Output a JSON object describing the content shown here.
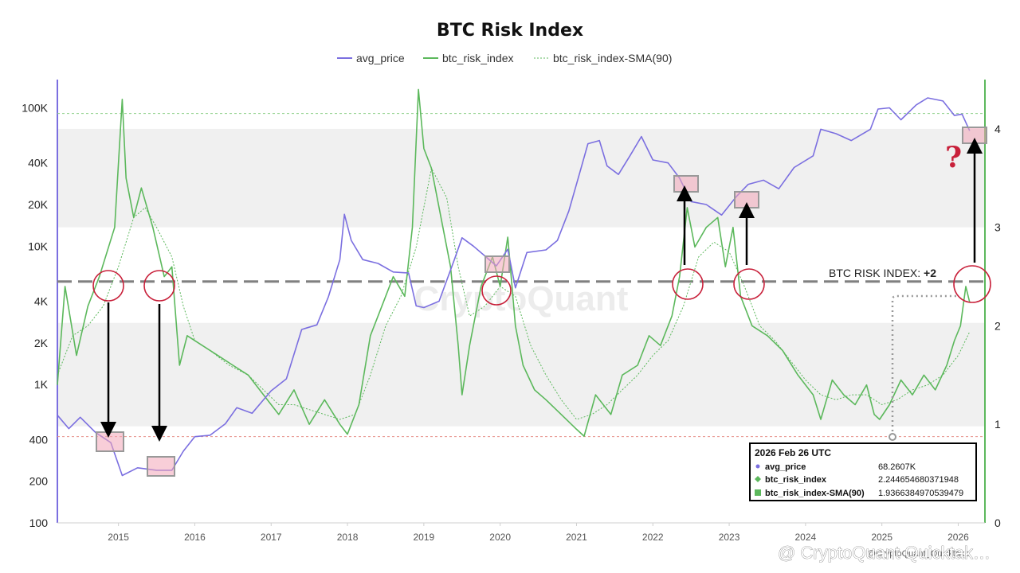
{
  "chart_data": {
    "type": "line",
    "title": "BTC Risk Index",
    "legend": {
      "placement": "top-center",
      "entries": [
        "avg_price",
        "btc_risk_index",
        "btc_risk_index-SMA(90)"
      ]
    },
    "x_range": [
      2014.2,
      2026.35
    ],
    "x_ticks": [
      "2015",
      "2016",
      "2017",
      "2018",
      "2019",
      "2020",
      "2021",
      "2022",
      "2023",
      "2024",
      "2025",
      "2026"
    ],
    "y_left": {
      "scale": "log",
      "range": [
        100,
        160000
      ],
      "ticks": [
        "100",
        "200",
        "400",
        "1K",
        "2K",
        "4K",
        "10K",
        "20K",
        "40K",
        "100K"
      ]
    },
    "y_right": {
      "scale": "linear",
      "range": [
        0,
        4.5
      ],
      "ticks": [
        "0",
        "1",
        "2",
        "3",
        "4"
      ]
    },
    "grid": false,
    "bands_right_axis": [
      [
        0.98,
        2.03
      ],
      [
        3.0,
        4.0
      ]
    ],
    "ref_lines": [
      {
        "axis": "right",
        "value": 2.45,
        "style": "dashed",
        "color": "#808080"
      },
      {
        "axis": "left",
        "value": 420,
        "style": "dotted",
        "color": "#e8918a"
      },
      {
        "axis": "left",
        "value": 91000,
        "style": "dotted",
        "color": "#8fd18a"
      }
    ],
    "series": [
      {
        "name": "avg_price",
        "axis": "left",
        "color": "#7b6fe0",
        "points": [
          [
            2014.2,
            600
          ],
          [
            2014.35,
            480
          ],
          [
            2014.5,
            580
          ],
          [
            2014.7,
            450
          ],
          [
            2014.9,
            380
          ],
          [
            2015.05,
            220
          ],
          [
            2015.25,
            250
          ],
          [
            2015.5,
            240
          ],
          [
            2015.7,
            240
          ],
          [
            2015.85,
            330
          ],
          [
            2016.0,
            420
          ],
          [
            2016.2,
            430
          ],
          [
            2016.4,
            520
          ],
          [
            2016.55,
            680
          ],
          [
            2016.75,
            620
          ],
          [
            2017.0,
            900
          ],
          [
            2017.2,
            1100
          ],
          [
            2017.4,
            2500
          ],
          [
            2017.6,
            2700
          ],
          [
            2017.75,
            4300
          ],
          [
            2017.9,
            8000
          ],
          [
            2017.96,
            17000
          ],
          [
            2018.05,
            11000
          ],
          [
            2018.2,
            8000
          ],
          [
            2018.4,
            7500
          ],
          [
            2018.6,
            6500
          ],
          [
            2018.8,
            6400
          ],
          [
            2018.9,
            3700
          ],
          [
            2019.0,
            3600
          ],
          [
            2019.2,
            4000
          ],
          [
            2019.4,
            8000
          ],
          [
            2019.5,
            11500
          ],
          [
            2019.65,
            10000
          ],
          [
            2019.8,
            8500
          ],
          [
            2019.95,
            7200
          ],
          [
            2020.1,
            9500
          ],
          [
            2020.2,
            5000
          ],
          [
            2020.35,
            9000
          ],
          [
            2020.6,
            9400
          ],
          [
            2020.75,
            11000
          ],
          [
            2020.9,
            18000
          ],
          [
            2021.05,
            35000
          ],
          [
            2021.15,
            55000
          ],
          [
            2021.3,
            58000
          ],
          [
            2021.4,
            38000
          ],
          [
            2021.55,
            33000
          ],
          [
            2021.7,
            45000
          ],
          [
            2021.85,
            62000
          ],
          [
            2022.0,
            42000
          ],
          [
            2022.2,
            40000
          ],
          [
            2022.35,
            31000
          ],
          [
            2022.5,
            21000
          ],
          [
            2022.7,
            20000
          ],
          [
            2022.9,
            16800
          ],
          [
            2023.1,
            23000
          ],
          [
            2023.25,
            28000
          ],
          [
            2023.45,
            30000
          ],
          [
            2023.65,
            26000
          ],
          [
            2023.85,
            37000
          ],
          [
            2024.1,
            45000
          ],
          [
            2024.2,
            70000
          ],
          [
            2024.4,
            65000
          ],
          [
            2024.6,
            58000
          ],
          [
            2024.85,
            70000
          ],
          [
            2024.95,
            98000
          ],
          [
            2025.1,
            100000
          ],
          [
            2025.25,
            82000
          ],
          [
            2025.45,
            105000
          ],
          [
            2025.6,
            118000
          ],
          [
            2025.8,
            112000
          ],
          [
            2025.95,
            88000
          ],
          [
            2026.05,
            90000
          ],
          [
            2026.15,
            68260
          ]
        ]
      },
      {
        "name": "btc_risk_index",
        "axis": "right",
        "color": "#5cb85c",
        "points": [
          [
            2014.2,
            1.4
          ],
          [
            2014.3,
            2.4
          ],
          [
            2014.45,
            1.7
          ],
          [
            2014.6,
            2.2
          ],
          [
            2014.75,
            2.5
          ],
          [
            2014.95,
            3.0
          ],
          [
            2015.05,
            4.3
          ],
          [
            2015.1,
            3.5
          ],
          [
            2015.2,
            3.1
          ],
          [
            2015.3,
            3.4
          ],
          [
            2015.45,
            3.0
          ],
          [
            2015.6,
            2.5
          ],
          [
            2015.7,
            2.6
          ],
          [
            2015.8,
            1.6
          ],
          [
            2015.9,
            1.9
          ],
          [
            2016.1,
            1.8
          ],
          [
            2016.3,
            1.7
          ],
          [
            2016.5,
            1.6
          ],
          [
            2016.7,
            1.5
          ],
          [
            2016.9,
            1.3
          ],
          [
            2017.1,
            1.1
          ],
          [
            2017.3,
            1.35
          ],
          [
            2017.5,
            1.0
          ],
          [
            2017.7,
            1.25
          ],
          [
            2017.9,
            1.0
          ],
          [
            2018.0,
            0.9
          ],
          [
            2018.15,
            1.2
          ],
          [
            2018.3,
            1.9
          ],
          [
            2018.45,
            2.2
          ],
          [
            2018.6,
            2.5
          ],
          [
            2018.75,
            2.3
          ],
          [
            2018.85,
            3.0
          ],
          [
            2018.93,
            4.4
          ],
          [
            2019.0,
            3.8
          ],
          [
            2019.1,
            3.6
          ],
          [
            2019.25,
            3.0
          ],
          [
            2019.35,
            2.6
          ],
          [
            2019.45,
            1.8
          ],
          [
            2019.5,
            1.3
          ],
          [
            2019.6,
            1.8
          ],
          [
            2019.75,
            2.4
          ],
          [
            2019.9,
            2.7
          ],
          [
            2020.0,
            2.4
          ],
          [
            2020.1,
            2.9
          ],
          [
            2020.2,
            2.0
          ],
          [
            2020.3,
            1.6
          ],
          [
            2020.45,
            1.35
          ],
          [
            2020.6,
            1.25
          ],
          [
            2020.8,
            1.1
          ],
          [
            2021.0,
            0.95
          ],
          [
            2021.1,
            0.88
          ],
          [
            2021.25,
            1.3
          ],
          [
            2021.45,
            1.1
          ],
          [
            2021.6,
            1.5
          ],
          [
            2021.8,
            1.6
          ],
          [
            2021.95,
            1.9
          ],
          [
            2022.1,
            1.8
          ],
          [
            2022.25,
            2.1
          ],
          [
            2022.35,
            2.5
          ],
          [
            2022.45,
            3.2
          ],
          [
            2022.55,
            2.8
          ],
          [
            2022.7,
            3.0
          ],
          [
            2022.85,
            3.1
          ],
          [
            2022.95,
            2.6
          ],
          [
            2023.05,
            3.0
          ],
          [
            2023.15,
            2.3
          ],
          [
            2023.3,
            2.0
          ],
          [
            2023.5,
            1.9
          ],
          [
            2023.7,
            1.75
          ],
          [
            2023.9,
            1.5
          ],
          [
            2024.1,
            1.3
          ],
          [
            2024.2,
            1.05
          ],
          [
            2024.35,
            1.45
          ],
          [
            2024.5,
            1.3
          ],
          [
            2024.65,
            1.2
          ],
          [
            2024.8,
            1.4
          ],
          [
            2024.9,
            1.1
          ],
          [
            2024.97,
            1.05
          ],
          [
            2025.1,
            1.2
          ],
          [
            2025.25,
            1.45
          ],
          [
            2025.4,
            1.3
          ],
          [
            2025.55,
            1.5
          ],
          [
            2025.7,
            1.35
          ],
          [
            2025.85,
            1.6
          ],
          [
            2025.95,
            1.85
          ],
          [
            2026.03,
            2.0
          ],
          [
            2026.1,
            2.4
          ],
          [
            2026.15,
            2.24
          ]
        ]
      },
      {
        "name": "btc_risk_index-SMA(90)",
        "axis": "right",
        "color": "#5cb85c",
        "points": [
          [
            2014.2,
            1.5
          ],
          [
            2014.4,
            1.9
          ],
          [
            2014.6,
            2.0
          ],
          [
            2014.8,
            2.2
          ],
          [
            2015.0,
            2.6
          ],
          [
            2015.2,
            3.1
          ],
          [
            2015.35,
            3.2
          ],
          [
            2015.5,
            3.0
          ],
          [
            2015.7,
            2.7
          ],
          [
            2015.85,
            2.2
          ],
          [
            2016.0,
            1.85
          ],
          [
            2016.2,
            1.75
          ],
          [
            2016.45,
            1.6
          ],
          [
            2016.7,
            1.5
          ],
          [
            2016.9,
            1.35
          ],
          [
            2017.1,
            1.2
          ],
          [
            2017.3,
            1.2
          ],
          [
            2017.5,
            1.15
          ],
          [
            2017.7,
            1.1
          ],
          [
            2017.9,
            1.05
          ],
          [
            2018.1,
            1.1
          ],
          [
            2018.3,
            1.5
          ],
          [
            2018.5,
            2.0
          ],
          [
            2018.7,
            2.3
          ],
          [
            2018.9,
            2.8
          ],
          [
            2019.1,
            3.6
          ],
          [
            2019.3,
            3.3
          ],
          [
            2019.45,
            2.6
          ],
          [
            2019.6,
            2.1
          ],
          [
            2019.8,
            2.2
          ],
          [
            2020.0,
            2.4
          ],
          [
            2020.2,
            2.3
          ],
          [
            2020.4,
            1.8
          ],
          [
            2020.6,
            1.5
          ],
          [
            2020.8,
            1.25
          ],
          [
            2021.0,
            1.05
          ],
          [
            2021.2,
            1.1
          ],
          [
            2021.4,
            1.2
          ],
          [
            2021.6,
            1.35
          ],
          [
            2021.8,
            1.5
          ],
          [
            2022.0,
            1.7
          ],
          [
            2022.2,
            1.85
          ],
          [
            2022.4,
            2.2
          ],
          [
            2022.6,
            2.7
          ],
          [
            2022.8,
            2.85
          ],
          [
            2023.0,
            2.75
          ],
          [
            2023.2,
            2.4
          ],
          [
            2023.4,
            2.0
          ],
          [
            2023.6,
            1.85
          ],
          [
            2023.8,
            1.65
          ],
          [
            2024.0,
            1.45
          ],
          [
            2024.2,
            1.3
          ],
          [
            2024.4,
            1.25
          ],
          [
            2024.6,
            1.3
          ],
          [
            2024.8,
            1.3
          ],
          [
            2025.0,
            1.2
          ],
          [
            2025.2,
            1.25
          ],
          [
            2025.4,
            1.35
          ],
          [
            2025.6,
            1.4
          ],
          [
            2025.8,
            1.5
          ],
          [
            2026.0,
            1.7
          ],
          [
            2026.15,
            1.94
          ]
        ]
      }
    ],
    "annotations": {
      "risk_label_prefix": "BTC RISK INDEX: ",
      "risk_label_value": "+2",
      "question_mark": "?",
      "watermark": "CryptoQuant",
      "credit": "@ CryptoQuant Quicktak…",
      "credit_sub": "@CryptoQuant_Quicktake"
    },
    "tooltip": {
      "title": "2026 Feb 26 UTC",
      "rows": [
        {
          "label": "avg_price",
          "value": "68.2607K"
        },
        {
          "label": "btc_risk_index",
          "value": "2.244654680371948"
        },
        {
          "label": "btc_risk_index-SMA(90)",
          "value": "1.9366384970539479"
        }
      ]
    }
  }
}
